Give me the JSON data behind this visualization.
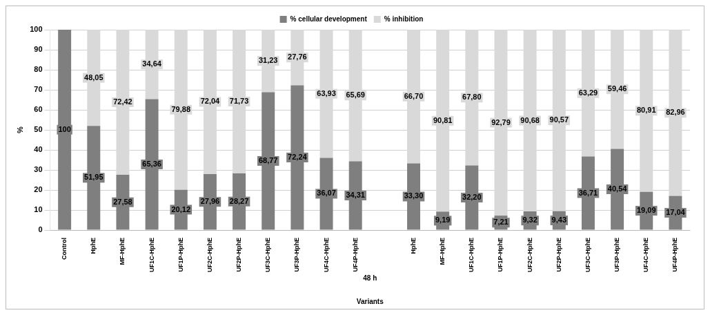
{
  "chart_data": {
    "type": "bar",
    "stacked": true,
    "xlabel": "Variants",
    "ylabel": "%",
    "annotations": [
      "48 h"
    ],
    "categories": [
      "Control",
      "HphE",
      "MF-HphE",
      "UF1C-HphE",
      "UF1P-HphE",
      "UF2C-HphE",
      "UF2P-HphE",
      "UF3C-HphE",
      "UF3P-HphE",
      "UF4C-HphE",
      "UF4P-HphE",
      null,
      "HphE",
      "MF-HphE",
      "UF1C-HphE",
      "UF1P-HphE",
      "UF2C-HphE",
      "UF2P-HphE",
      "UF3C-HphE",
      "UF3P-HphE",
      "UF4C-HphE",
      "UF4P-HphE"
    ],
    "series": [
      {
        "name": "% cellular development",
        "color": "#7f7f7f",
        "values": [
          100,
          51.95,
          27.58,
          65.36,
          20.12,
          27.96,
          28.27,
          68.77,
          72.24,
          36.07,
          34.31,
          null,
          33.3,
          9.19,
          32.2,
          7.21,
          9.32,
          9.43,
          36.71,
          40.54,
          19.09,
          17.04
        ],
        "value_labels": [
          "100",
          "51,95",
          "27,58",
          "65,36",
          "20,12",
          "27,96",
          "28,27",
          "68,77",
          "72,24",
          "36,07",
          "34,31",
          null,
          "33,30",
          "9,19",
          "32,20",
          "7,21",
          "9,32",
          "9,43",
          "36,71",
          "40,54",
          "19,09",
          "17,04"
        ]
      },
      {
        "name": "% inhibition",
        "color": "#d9d9d9",
        "values": [
          0,
          48.05,
          72.42,
          34.64,
          79.88,
          72.04,
          71.73,
          31.23,
          27.76,
          63.93,
          65.69,
          null,
          66.7,
          90.81,
          67.8,
          92.79,
          90.68,
          90.57,
          63.29,
          59.46,
          80.91,
          82.96
        ],
        "value_labels": [
          null,
          "48,05",
          "72,42",
          "34,64",
          "79,88",
          "72,04",
          "71,73",
          "31,23",
          "27,76",
          "63,93",
          "65,69",
          null,
          "66,70",
          "90,81",
          "67,80",
          "92,79",
          "90,68",
          "90,57",
          "63,29",
          "59,46",
          "80,91",
          "82,96"
        ]
      }
    ],
    "ylim": [
      0,
      100
    ],
    "yticks": [
      0,
      10,
      20,
      30,
      40,
      50,
      60,
      70,
      80,
      90,
      100
    ],
    "grid": "y",
    "legend": "top"
  }
}
